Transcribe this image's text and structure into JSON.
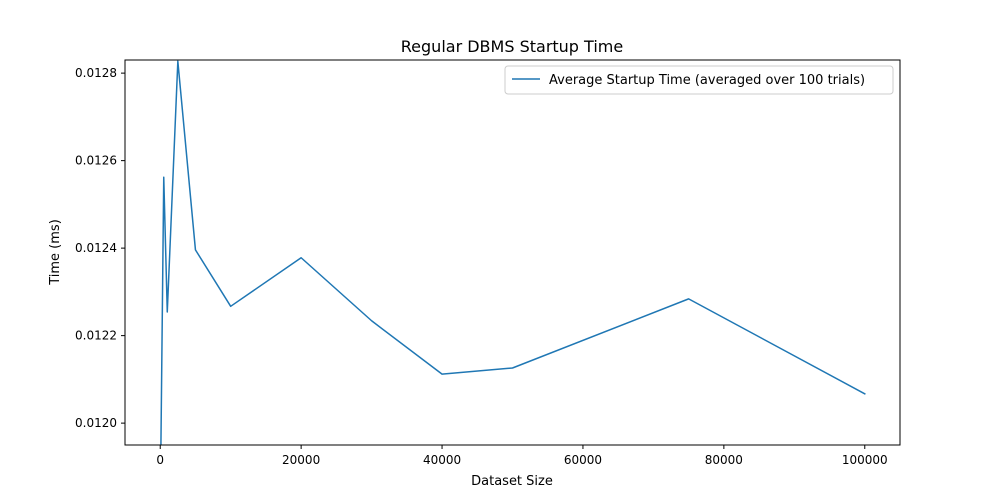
{
  "chart_data": {
    "type": "line",
    "title": "Regular DBMS Startup Time",
    "xlabel": "Dataset Size",
    "ylabel": "Time (ms)",
    "xlim": [
      -5000,
      105000
    ],
    "ylim": [
      0.01195,
      0.01283
    ],
    "xticks": [
      0,
      20000,
      40000,
      60000,
      80000,
      100000
    ],
    "xtick_labels": [
      "0",
      "20000",
      "40000",
      "60000",
      "80000",
      "100000"
    ],
    "yticks": [
      0.012,
      0.0122,
      0.0124,
      0.0126,
      0.0128
    ],
    "ytick_labels": [
      "0.0120",
      "0.0122",
      "0.0124",
      "0.0126",
      "0.0128"
    ],
    "grid": false,
    "legend_position": "top-right",
    "series": [
      {
        "name": "Average Startup Time (averaged over 100 trials)",
        "color": "#1f77b4",
        "x": [
          100,
          500,
          1000,
          2500,
          5000,
          10000,
          20000,
          30000,
          40000,
          50000,
          75000,
          100000
        ],
        "y": [
          0.011952,
          0.012562,
          0.012254,
          0.012827,
          0.012396,
          0.012267,
          0.012378,
          0.012234,
          0.012112,
          0.012126,
          0.012284,
          0.012067
        ]
      }
    ]
  }
}
